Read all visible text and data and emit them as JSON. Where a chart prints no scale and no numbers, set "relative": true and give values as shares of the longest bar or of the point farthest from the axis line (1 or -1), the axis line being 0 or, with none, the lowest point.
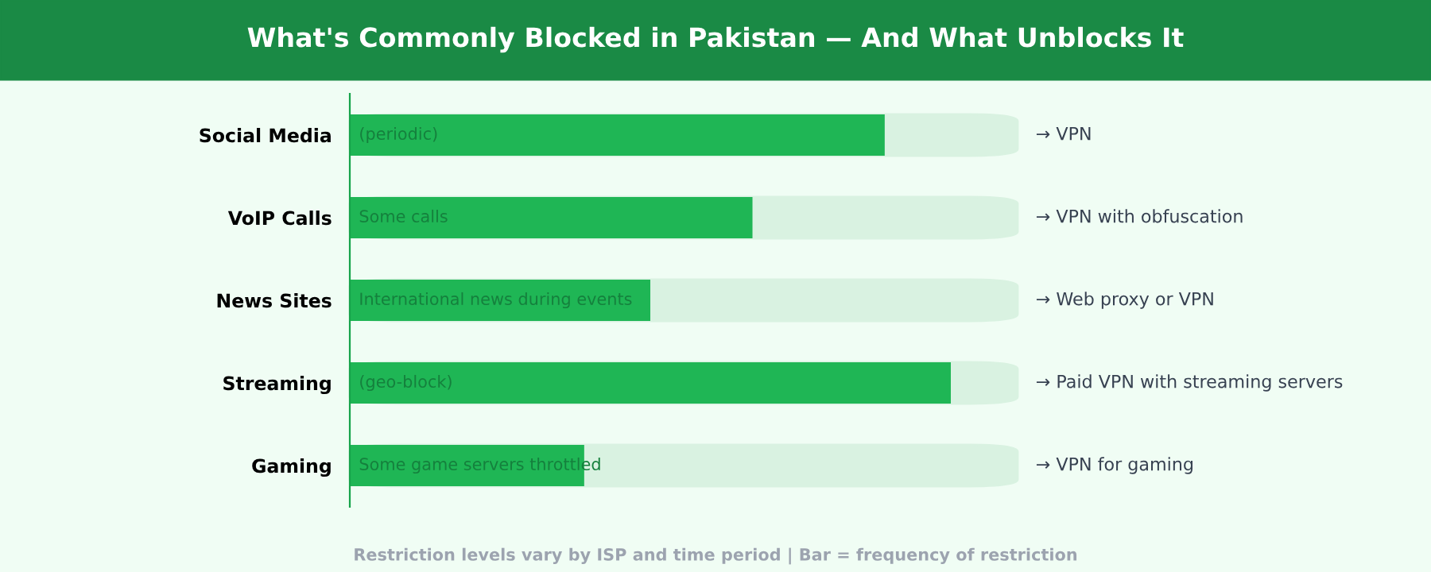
{
  "chart_data": {
    "type": "bar",
    "orientation": "horizontal",
    "relative": true,
    "title": "What's Commonly Blocked in Pakistan — And What Unblocks It",
    "categories": [
      "Social Media",
      "VoIP Calls",
      "News Sites",
      "Streaming",
      "Gaming"
    ],
    "values": [
      0.89,
      0.67,
      0.5,
      1,
      0.39
    ],
    "color": "#1fb655",
    "grid": false,
    "legend": false,
    "annotations": [
      "(periodic)",
      "Some calls",
      "International news during events",
      "(geo-block)",
      "Some game servers throttled",
      "→ VPN",
      "→ VPN with obfuscation",
      "→ Web proxy or VPN",
      "→ Paid VPN with streaming servers",
      "→ VPN for gaming",
      "Restriction levels vary by ISP and time period | Bar = frequency of restriction"
    ]
  }
}
